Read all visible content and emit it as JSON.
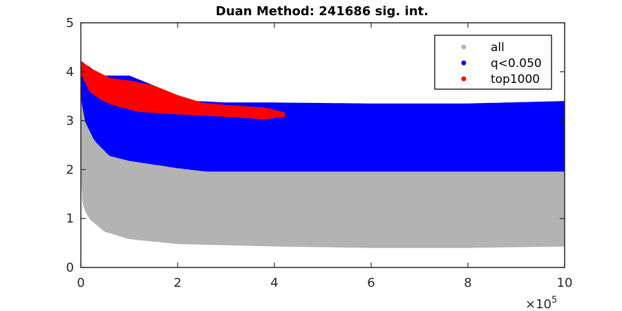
{
  "chart_data": {
    "type": "scatter",
    "title": "Duan Method: 241686 sig. int.",
    "xlabel": "",
    "ylabel": "",
    "xlim": [
      0,
      1000000
    ],
    "ylim": [
      0,
      5
    ],
    "x_exponent_label": "×10",
    "x_exponent_power": "5",
    "x_ticks": [
      {
        "value": 0,
        "label": "0"
      },
      {
        "value": 200000,
        "label": "2"
      },
      {
        "value": 400000,
        "label": "4"
      },
      {
        "value": 600000,
        "label": "6"
      },
      {
        "value": 800000,
        "label": "8"
      },
      {
        "value": 1000000,
        "label": "10"
      }
    ],
    "y_ticks": [
      {
        "value": 0,
        "label": "0"
      },
      {
        "value": 1,
        "label": "1"
      },
      {
        "value": 2,
        "label": "2"
      },
      {
        "value": 3,
        "label": "3"
      },
      {
        "value": 4,
        "label": "4"
      },
      {
        "value": 5,
        "label": "5"
      }
    ],
    "grid": false,
    "legend_position": "top-right",
    "series": [
      {
        "name": "all",
        "color": "#b3b3b3",
        "upper_envelope": [
          [
            0,
            3.9
          ],
          [
            5000,
            3.3
          ],
          [
            10000,
            3.0
          ],
          [
            20000,
            2.9
          ],
          [
            50000,
            2.6
          ],
          [
            100000,
            2.3
          ],
          [
            200000,
            2.2
          ],
          [
            300000,
            2.0
          ],
          [
            1000000,
            2.0
          ]
        ],
        "lower_envelope": [
          [
            0,
            2.2
          ],
          [
            2000,
            1.5
          ],
          [
            8000,
            1.2
          ],
          [
            20000,
            1.0
          ],
          [
            50000,
            0.75
          ],
          [
            100000,
            0.6
          ],
          [
            200000,
            0.5
          ],
          [
            400000,
            0.45
          ],
          [
            600000,
            0.42
          ],
          [
            800000,
            0.42
          ],
          [
            1000000,
            0.45
          ]
        ]
      },
      {
        "name": "q<0.050",
        "color": "#0000ff",
        "upper_envelope": [
          [
            0,
            4.15
          ],
          [
            15000,
            4.1
          ],
          [
            40000,
            3.9
          ],
          [
            100000,
            3.9
          ],
          [
            150000,
            3.7
          ],
          [
            200000,
            3.4
          ],
          [
            300000,
            3.35
          ],
          [
            400000,
            3.35
          ],
          [
            600000,
            3.33
          ],
          [
            800000,
            3.33
          ],
          [
            1000000,
            3.38
          ]
        ],
        "lower_envelope": [
          [
            0,
            3.6
          ],
          [
            10000,
            3.0
          ],
          [
            30000,
            2.6
          ],
          [
            60000,
            2.3
          ],
          [
            100000,
            2.2
          ],
          [
            200000,
            2.05
          ],
          [
            260000,
            1.98
          ],
          [
            1000000,
            1.98
          ]
        ]
      },
      {
        "name": "top1000",
        "color": "#ff0000",
        "upper_envelope": [
          [
            0,
            4.2
          ],
          [
            20000,
            4.05
          ],
          [
            60000,
            3.85
          ],
          [
            100000,
            3.8
          ],
          [
            150000,
            3.7
          ],
          [
            200000,
            3.5
          ],
          [
            250000,
            3.35
          ],
          [
            300000,
            3.3
          ],
          [
            380000,
            3.25
          ],
          [
            420000,
            3.15
          ]
        ],
        "lower_envelope": [
          [
            0,
            4.0
          ],
          [
            20000,
            3.6
          ],
          [
            50000,
            3.4
          ],
          [
            80000,
            3.3
          ],
          [
            120000,
            3.2
          ],
          [
            200000,
            3.15
          ],
          [
            300000,
            3.1
          ],
          [
            380000,
            3.05
          ],
          [
            420000,
            3.1
          ]
        ]
      }
    ]
  }
}
